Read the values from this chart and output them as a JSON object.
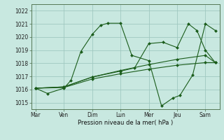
{
  "xlabel": "Pression niveau de la mer( hPa )",
  "ylim": [
    1014.5,
    1022.5
  ],
  "yticks": [
    1015,
    1016,
    1017,
    1018,
    1019,
    1020,
    1021,
    1022
  ],
  "xtick_labels": [
    "Mar",
    "Ven",
    "Dim",
    "Lun",
    "Mer",
    "Jeu",
    "Sam"
  ],
  "xtick_positions": [
    0,
    1,
    2,
    3,
    4,
    5,
    6
  ],
  "xlim": [
    -0.15,
    6.5
  ],
  "background_color": "#c8e8e0",
  "grid_color": "#a0c8c0",
  "line_color": "#1a5c1a",
  "series": [
    {
      "x": [
        0,
        0.42,
        1.0,
        1.25,
        1.6,
        2.0,
        2.3,
        2.55,
        3.0,
        3.4,
        4.0,
        4.45,
        4.85,
        5.1,
        5.55,
        6.0,
        6.35
      ],
      "y": [
        1016.1,
        1015.7,
        1016.1,
        1016.7,
        1018.9,
        1020.2,
        1020.9,
        1021.05,
        1021.05,
        1018.6,
        1018.2,
        1014.75,
        1015.35,
        1015.55,
        1017.1,
        1021.0,
        1020.5
      ]
    },
    {
      "x": [
        0,
        1.0,
        2.0,
        3.0,
        4.0,
        5.0,
        6.0,
        6.35
      ],
      "y": [
        1016.1,
        1016.15,
        1016.8,
        1017.2,
        1017.55,
        1017.85,
        1018.05,
        1018.05
      ]
    },
    {
      "x": [
        0,
        1.0,
        2.0,
        3.0,
        4.0,
        5.0,
        6.0,
        6.35
      ],
      "y": [
        1016.1,
        1016.2,
        1016.95,
        1017.45,
        1017.9,
        1018.3,
        1018.6,
        1018.05
      ]
    },
    {
      "x": [
        0,
        1.0,
        2.0,
        3.0,
        3.5,
        4.0,
        4.5,
        5.0,
        5.4,
        5.7,
        6.0,
        6.35
      ],
      "y": [
        1016.1,
        1016.2,
        1016.95,
        1017.4,
        1017.65,
        1019.5,
        1019.6,
        1019.2,
        1021.0,
        1020.5,
        1019.0,
        1018.05
      ]
    }
  ]
}
